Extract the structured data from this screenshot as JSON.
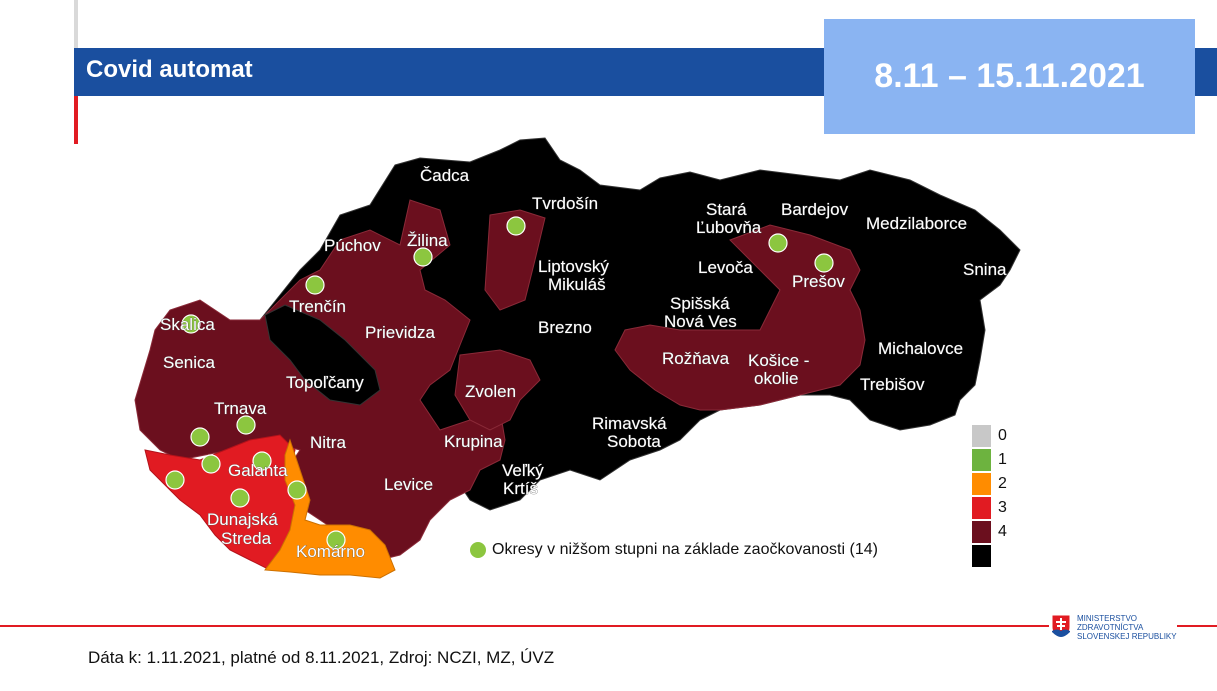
{
  "header": {
    "title": "Covid automat",
    "date_range": "8.11 – 15.11.2021"
  },
  "map": {
    "district_labels": [
      {
        "id": "cadca",
        "text": "Čadca"
      },
      {
        "id": "tvrdosin",
        "text": "Tvrdošín"
      },
      {
        "id": "puchov",
        "text": "Púchov"
      },
      {
        "id": "zilina",
        "text": "Žilina"
      },
      {
        "id": "stara-lubovna-1",
        "text": "Stará"
      },
      {
        "id": "stara-lubovna-2",
        "text": "Ľubovňa"
      },
      {
        "id": "bardejov",
        "text": "Bardejov"
      },
      {
        "id": "medzilaborce",
        "text": "Medzilaborce"
      },
      {
        "id": "snina",
        "text": "Snina"
      },
      {
        "id": "liptovsky-1",
        "text": "Liptovský"
      },
      {
        "id": "liptovsky-2",
        "text": "Mikuláš"
      },
      {
        "id": "levoca",
        "text": "Levoča"
      },
      {
        "id": "presov",
        "text": "Prešov"
      },
      {
        "id": "trencin",
        "text": "Trenčín"
      },
      {
        "id": "skalica",
        "text": "Skalica"
      },
      {
        "id": "prievidza",
        "text": "Prievidza"
      },
      {
        "id": "brezno",
        "text": "Brezno"
      },
      {
        "id": "spisska-1",
        "text": "Spišská"
      },
      {
        "id": "spisska-2",
        "text": "Nová Ves"
      },
      {
        "id": "senica",
        "text": "Senica"
      },
      {
        "id": "roznava",
        "text": "Rožňava"
      },
      {
        "id": "kosice-1",
        "text": "Košice -"
      },
      {
        "id": "kosice-2",
        "text": "okolie"
      },
      {
        "id": "michalovce",
        "text": "Michalovce"
      },
      {
        "id": "topolcany",
        "text": "Topoľčany"
      },
      {
        "id": "trebisov",
        "text": "Trebišov"
      },
      {
        "id": "zvolen",
        "text": "Zvolen"
      },
      {
        "id": "trnava",
        "text": "Trnava"
      },
      {
        "id": "rimavska-1",
        "text": "Rimavská"
      },
      {
        "id": "rimavska-2",
        "text": "Sobota"
      },
      {
        "id": "krupina",
        "text": "Krupina"
      },
      {
        "id": "nitra",
        "text": "Nitra"
      },
      {
        "id": "galanta",
        "text": "Galanta"
      },
      {
        "id": "velky-1",
        "text": "Veľký"
      },
      {
        "id": "velky-2",
        "text": "Krtíš"
      },
      {
        "id": "levice",
        "text": "Levice"
      },
      {
        "id": "dunajska-1",
        "text": "Dunajská"
      },
      {
        "id": "dunajska-2",
        "text": "Streda"
      },
      {
        "id": "komarno",
        "text": "Komárno"
      }
    ],
    "level_colors": {
      "0": "#c8c8c8",
      "1": "#6db33f",
      "2": "#ff8c00",
      "3": "#e11b22",
      "4_dark_red": "#6b0f1e",
      "4_black": "#000000"
    }
  },
  "legend": {
    "levels": [
      {
        "label": "0",
        "color": "#c8c8c8"
      },
      {
        "label": "1",
        "color": "#6db33f"
      },
      {
        "label": "2",
        "color": "#ff8c00"
      },
      {
        "label": "3",
        "color": "#e11b22"
      },
      {
        "label": "4",
        "color": "#6b0f1e"
      },
      {
        "label": "",
        "color": "#000000"
      }
    ],
    "vaccination_note": "Okresy v nižšom stupni na základe zaočkovanosti (14)"
  },
  "footer": {
    "source": "Dáta k: 1.11.2021, platné od 8.11.2021, Zdroj: NCZI, MZ, ÚVZ",
    "ministry_lines": [
      "MINISTERSTVO",
      "ZDRAVOTNÍCTVA",
      "SLOVENSKEJ REPUBLIKY"
    ]
  }
}
